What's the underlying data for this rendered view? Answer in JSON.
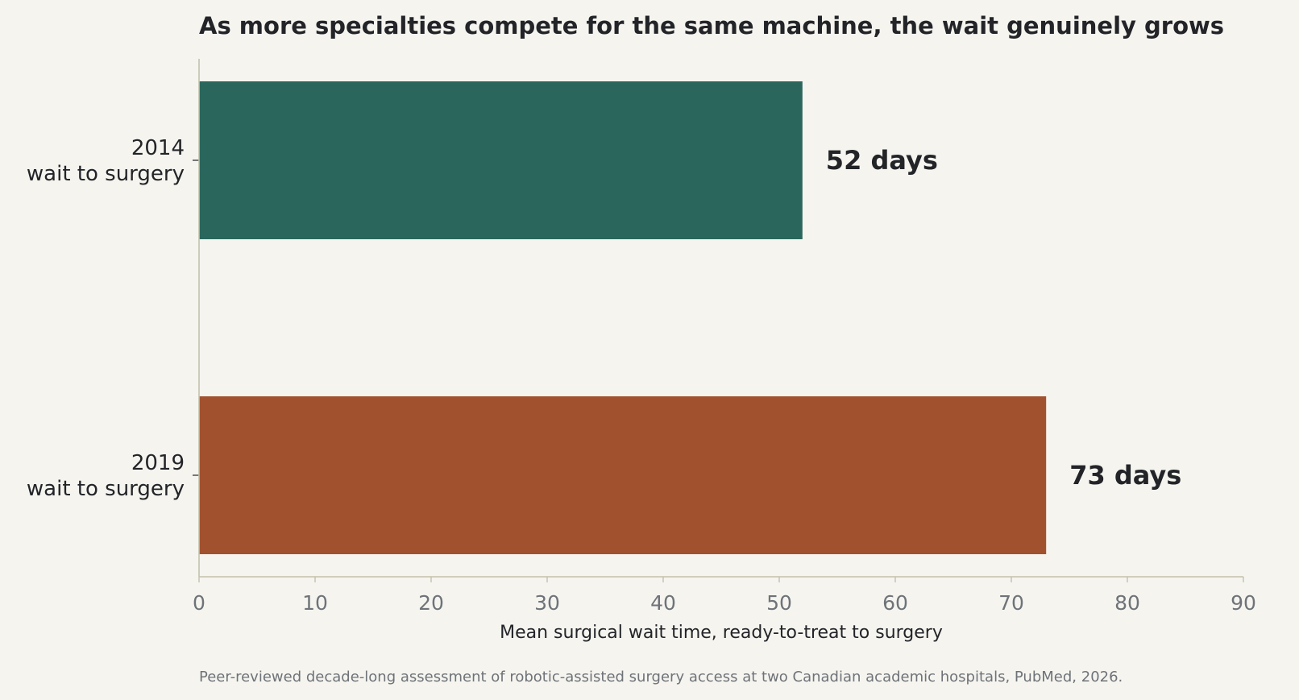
{
  "chart_data": {
    "type": "bar",
    "orientation": "horizontal",
    "title": "As more specialties compete for the same machine, the wait genuinely grows",
    "categories": [
      [
        "2014",
        "wait to surgery"
      ],
      [
        "2019",
        "wait to surgery"
      ]
    ],
    "values": [
      52,
      73
    ],
    "value_labels": [
      "52 days",
      "73 days"
    ],
    "colors": [
      "#2b665c",
      "#a2512f"
    ],
    "xlabel": "Mean surgical wait time, ready-to-treat to surgery",
    "ylabel": "",
    "xlim": [
      0,
      90
    ],
    "xticks": [
      0,
      10,
      20,
      30,
      40,
      50,
      60,
      70,
      80,
      90
    ],
    "grid": false,
    "source": "Peer-reviewed decade-long assessment of robotic-assisted surgery access at two Canadian academic hospitals, PubMed, 2026."
  }
}
